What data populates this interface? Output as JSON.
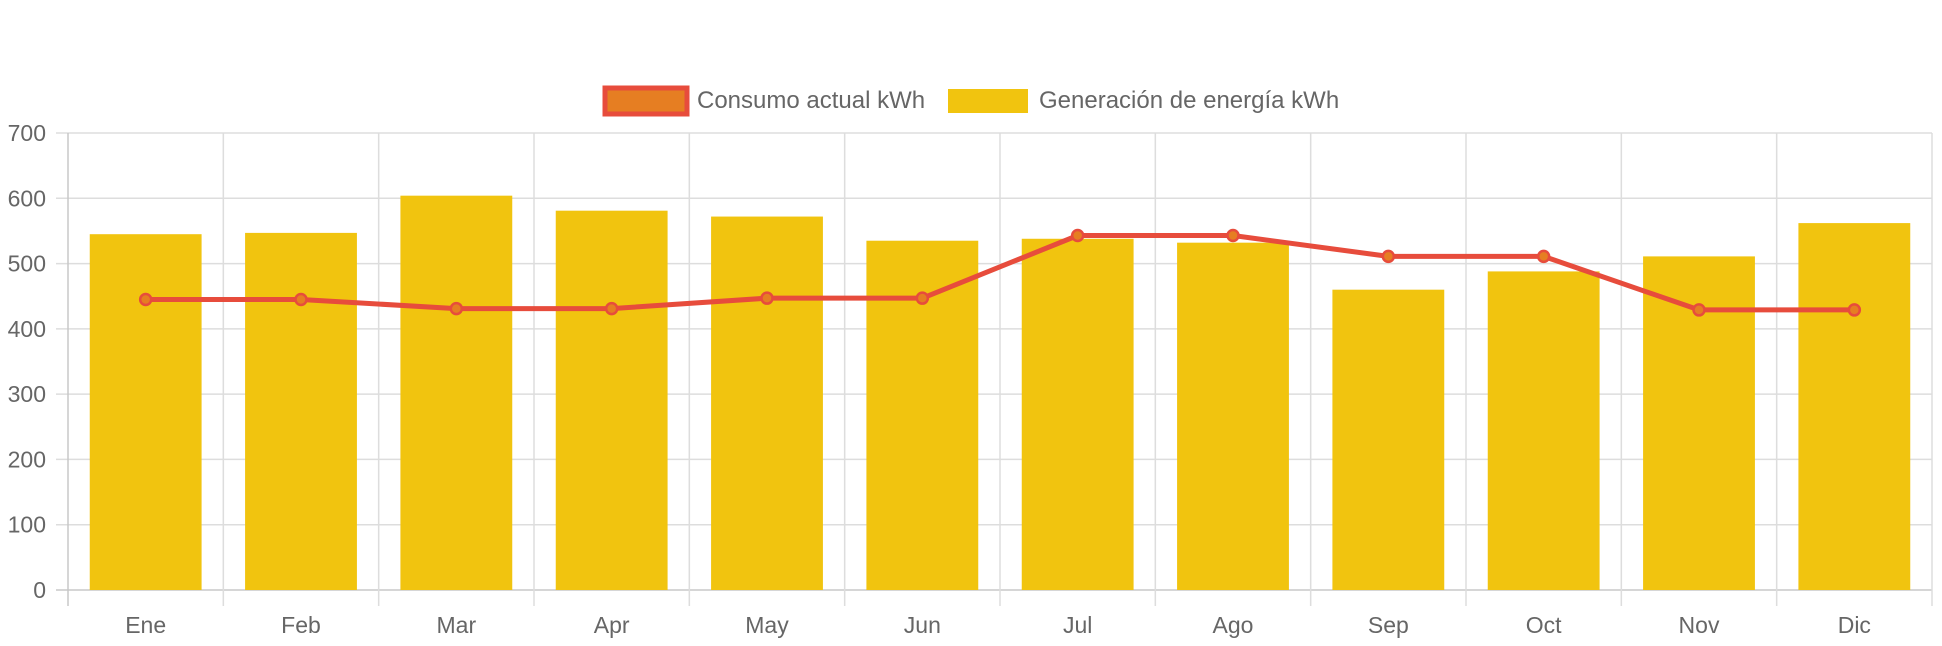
{
  "chart_data": {
    "type": "bar",
    "categories": [
      "Ene",
      "Feb",
      "Mar",
      "Apr",
      "May",
      "Jun",
      "Jul",
      "Ago",
      "Sep",
      "Oct",
      "Nov",
      "Dic"
    ],
    "series": [
      {
        "name": "Consumo actual kWh",
        "type": "line",
        "values": [
          445,
          445,
          431,
          431,
          447,
          447,
          543,
          543,
          511,
          511,
          429,
          429
        ],
        "color": "#e74c3c",
        "point_fill": "#e67e22"
      },
      {
        "name": "Generación de energía kWh",
        "type": "bar",
        "values": [
          545,
          547,
          604,
          581,
          572,
          535,
          538,
          532,
          460,
          488,
          511,
          562
        ],
        "color": "#f1c40f"
      }
    ],
    "yticks": [
      0,
      100,
      200,
      300,
      400,
      500,
      600,
      700
    ],
    "ylim": [
      0,
      700
    ],
    "grid": true,
    "legend_position": "top"
  }
}
